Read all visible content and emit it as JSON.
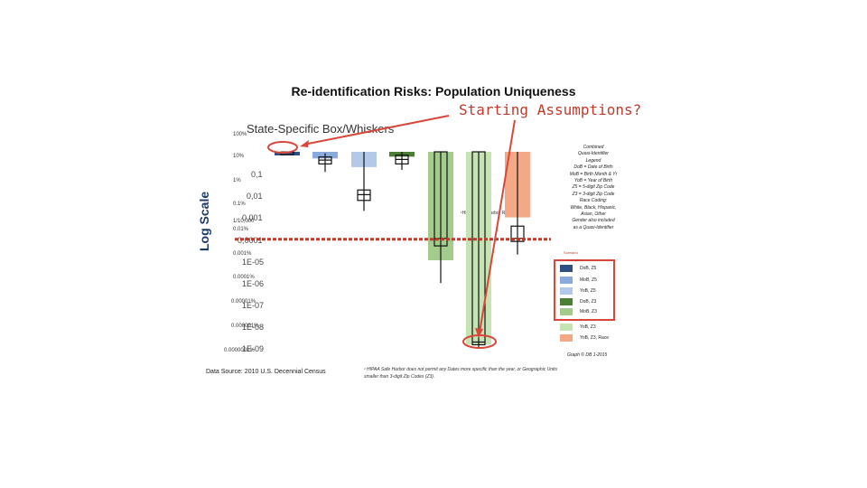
{
  "title": "Re-identification Risks: Population Uniqueness",
  "callout": "Starting Assumptions?",
  "subtitle": "State-Specific Box/Whiskers",
  "y_axis_label": "Log Scale",
  "percent_labels": [
    "100%",
    "10%",
    "1%",
    "0.1%",
    "0.01%",
    "0.001%",
    "0.0001%",
    "0.00001%",
    "0.000001%",
    "0.0000001%"
  ],
  "tick_labels": [
    "0,1",
    "0,01",
    "0,001",
    "0,0001",
    "1E-05",
    "1E-06",
    "1E-07",
    "1E-08",
    "1E-09"
  ],
  "hipaa_threshold_label": "1/10,000",
  "hipaa_estimate_label": "¹HIPAA Safe Harbor Risk Estimate",
  "data_source": "Data Source: 2010 U.S. Decennial Census",
  "footnote": "¹ HIPAA Safe Harbor does not permit any Dates more specific than the year, or Geographic Units smaller than 3-digit Zip Codes (Z3).",
  "legend": {
    "header": [
      "Combined",
      "Quasi-Identifier",
      "Legend",
      "DoB = Date of Birth",
      "MoB = Birth Month & Yr",
      "YoB = Year of Birth",
      "Z5 = 5-digit Zip Code",
      "Z3 = 3-digit Zip Code",
      "Race Coding:",
      "White, Black, Hispanic,",
      "Asian, Other",
      "Gender also included",
      "as a Quasi-Identifier"
    ],
    "scenario_label": "Scenario",
    "scenario_label2": "examples",
    "graph_note": "Graph © DB 1-2015"
  },
  "colors": {
    "dark_blue": "#2e4e86",
    "mid_blue": "#8aa9dc",
    "light_blue": "#b4c8ea",
    "dark_green": "#4b7f34",
    "mid_green": "#a3cc8c",
    "light_green": "#c6e3b4",
    "orange": "#f3a985",
    "callout_red": "#c0392b"
  },
  "chart_data": {
    "type": "bar",
    "y_scale": "log",
    "ylim": [
      1e-09,
      1
    ],
    "categories": [
      "DoB, Z5",
      "MoB, Z5",
      "YoB, Z5",
      "DoB, Z3",
      "MoB, Z3",
      "YoB, Z3",
      "YoB, Z3, Race"
    ],
    "values": [
      0.97,
      0.5,
      0.2,
      0.6,
      1.1e-05,
      1.5e-09,
      0.001
    ],
    "box_plots": [
      {
        "name": "DoB, Z5",
        "min": 0.9,
        "q1": 0.95,
        "median": 0.97,
        "q3": 0.98,
        "max": 0.99
      },
      {
        "name": "MoB, Z5",
        "min": 0.12,
        "q1": 0.28,
        "median": 0.42,
        "q3": 0.58,
        "max": 0.85
      },
      {
        "name": "YoB, Z5",
        "min": 0.002,
        "q1": 0.006,
        "median": 0.011,
        "q3": 0.018,
        "max": 1.0
      },
      {
        "name": "DoB, Z3",
        "min": 0.15,
        "q1": 0.28,
        "median": 0.45,
        "q3": 0.7,
        "max": 1.0
      },
      {
        "name": "MoB, Z3",
        "min": 1e-06,
        "q1": 5e-05,
        "median": 0.00011,
        "q3": 1.0,
        "max": 1.0
      },
      {
        "name": "YoB, Z3",
        "min": 1e-09,
        "q1": 1.5e-09,
        "median": 2e-09,
        "q3": 1.0,
        "max": 1.0
      },
      {
        "name": "YoB, Z3, Race",
        "min": 2e-05,
        "q1": 8e-05,
        "median": 0.00011,
        "q3": 0.0004,
        "max": 1.0
      }
    ],
    "hipaa_threshold": 0.0001
  }
}
